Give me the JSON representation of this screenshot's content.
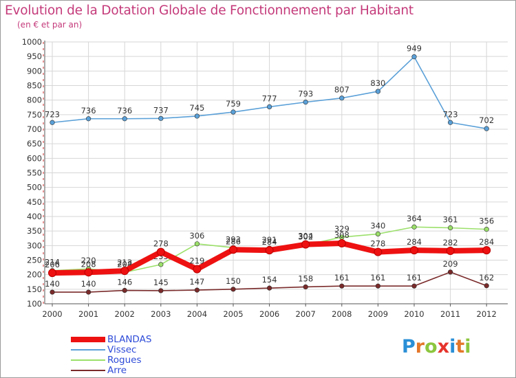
{
  "title": "Evolution de la Dotation Globale de Fonctionnement par Habitant",
  "subtitle": "(en € et par an)",
  "brand": {
    "letters": [
      "P",
      "r",
      "o",
      "x",
      "i",
      "t",
      "i"
    ],
    "colors": [
      "#2a8fd6",
      "#e4772a",
      "#8cc63f",
      "#e6342c",
      "#2a8fd6",
      "#e4772a",
      "#8cc63f"
    ]
  },
  "chart_data": {
    "type": "line",
    "title": "Evolution de la Dotation Globale de Fonctionnement par Habitant",
    "categories": [
      "2000",
      "2001",
      "2002",
      "2003",
      "2004",
      "2005",
      "2006",
      "2007",
      "2008",
      "2009",
      "2010",
      "2011",
      "2012"
    ],
    "ylim": [
      100,
      1000
    ],
    "yticks": [
      100,
      150,
      200,
      250,
      300,
      350,
      400,
      450,
      500,
      550,
      600,
      650,
      700,
      750,
      800,
      850,
      900,
      950,
      1000
    ],
    "grid": true,
    "legend_position": "bottom-left",
    "series": [
      {
        "name": "Arre",
        "color": "#7a2a2a",
        "values": [
          140,
          140,
          146,
          145,
          147,
          150,
          154,
          158,
          161,
          161,
          161,
          209,
          162
        ]
      },
      {
        "name": "Rogues",
        "color": "#9be06a",
        "values": [
          214,
          220,
          208,
          235,
          306,
          293,
          291,
          302,
          329,
          340,
          364,
          361,
          356
        ]
      },
      {
        "name": "Vissec",
        "color": "#5aa0d8",
        "values": [
          723,
          736,
          736,
          737,
          745,
          759,
          777,
          793,
          807,
          830,
          949,
          723,
          702
        ]
      },
      {
        "name": "BLANDAS",
        "color": "#ee1111",
        "values": [
          206,
          208,
          213,
          278,
          219,
          286,
          284,
          304,
          308,
          278,
          284,
          282,
          284
        ]
      }
    ]
  }
}
